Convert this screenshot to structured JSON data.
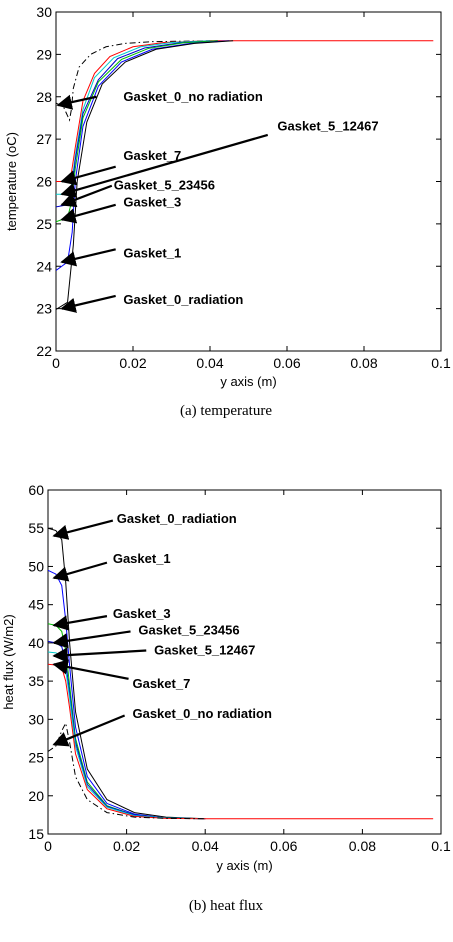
{
  "chart_data": [
    {
      "type": "line",
      "caption": "(a)  temperature",
      "xlabel": "y axis (m)",
      "ylabel": "temperature (oC)",
      "xlim": [
        0,
        0.1
      ],
      "ylim": [
        22,
        30
      ],
      "xticks": [
        0,
        0.02,
        0.04,
        0.06,
        0.08,
        0.1
      ],
      "xtick_labels": [
        "0",
        "0.02",
        "0.04",
        "0.06",
        "0.08",
        "0.1"
      ],
      "yticks": [
        22,
        23,
        24,
        25,
        26,
        27,
        28,
        29,
        30
      ],
      "ytick_labels": [
        "22",
        "23",
        "24",
        "25",
        "26",
        "27",
        "28",
        "29",
        "30"
      ],
      "series": [
        {
          "name": "Gasket_0_no radiation",
          "color": "#000000",
          "dash": "dashdot",
          "points": [
            [
              0,
              27.85
            ],
            [
              0.002,
              27.75
            ],
            [
              0.0035,
              27.45
            ],
            [
              0.004,
              27.7
            ],
            [
              0.0045,
              28.2
            ],
            [
              0.006,
              28.7
            ],
            [
              0.009,
              29.0
            ],
            [
              0.013,
              29.18
            ],
            [
              0.018,
              29.26
            ],
            [
              0.025,
              29.3
            ],
            [
              0.04,
              29.32
            ]
          ]
        },
        {
          "name": "Gasket_7",
          "color": "#ff0000",
          "dash": "solid",
          "points": [
            [
              0,
              26.0
            ],
            [
              0.003,
              26.0
            ],
            [
              0.004,
              26.2
            ],
            [
              0.005,
              26.8
            ],
            [
              0.007,
              27.9
            ],
            [
              0.01,
              28.55
            ],
            [
              0.014,
              28.95
            ],
            [
              0.02,
              29.18
            ],
            [
              0.028,
              29.28
            ],
            [
              0.04,
              29.32
            ],
            [
              0.098,
              29.32
            ]
          ]
        },
        {
          "name": "Gasket_5_12467",
          "color": "#00cccc",
          "dash": "solid",
          "points": [
            [
              0,
              25.7
            ],
            [
              0.003,
              25.7
            ],
            [
              0.004,
              25.9
            ],
            [
              0.005,
              26.6
            ],
            [
              0.007,
              27.7
            ],
            [
              0.01,
              28.45
            ],
            [
              0.015,
              28.92
            ],
            [
              0.022,
              29.18
            ],
            [
              0.03,
              29.28
            ],
            [
              0.04,
              29.32
            ]
          ]
        },
        {
          "name": "Gasket_5_23456",
          "color": "#0000cc",
          "dash": "solid",
          "points": [
            [
              0,
              25.4
            ],
            [
              0.003,
              25.45
            ],
            [
              0.004,
              25.7
            ],
            [
              0.005,
              26.5
            ],
            [
              0.007,
              27.6
            ],
            [
              0.011,
              28.4
            ],
            [
              0.016,
              28.9
            ],
            [
              0.023,
              29.15
            ],
            [
              0.032,
              29.27
            ],
            [
              0.042,
              29.32
            ]
          ]
        },
        {
          "name": "Gasket_3",
          "color": "#00bb00",
          "dash": "solid",
          "points": [
            [
              0,
              25.05
            ],
            [
              0.003,
              25.15
            ],
            [
              0.004,
              25.5
            ],
            [
              0.005,
              26.3
            ],
            [
              0.007,
              27.5
            ],
            [
              0.011,
              28.35
            ],
            [
              0.017,
              28.88
            ],
            [
              0.024,
              29.14
            ],
            [
              0.033,
              29.27
            ],
            [
              0.042,
              29.32
            ]
          ]
        },
        {
          "name": "Gasket_1",
          "color": "#0000ff",
          "dash": "solid",
          "points": [
            [
              0,
              23.9
            ],
            [
              0.003,
              24.1
            ],
            [
              0.0042,
              24.8
            ],
            [
              0.005,
              26.0
            ],
            [
              0.007,
              27.3
            ],
            [
              0.011,
              28.25
            ],
            [
              0.017,
              28.82
            ],
            [
              0.025,
              29.12
            ],
            [
              0.035,
              29.26
            ],
            [
              0.045,
              29.32
            ]
          ]
        },
        {
          "name": "Gasket_0_radiation",
          "color": "#000000",
          "dash": "solid",
          "points": [
            [
              0,
              22.98
            ],
            [
              0.003,
              23.15
            ],
            [
              0.0045,
              24.5
            ],
            [
              0.0055,
              26.0
            ],
            [
              0.008,
              27.4
            ],
            [
              0.012,
              28.3
            ],
            [
              0.018,
              28.82
            ],
            [
              0.026,
              29.12
            ],
            [
              0.036,
              29.26
            ],
            [
              0.046,
              29.32
            ]
          ]
        }
      ],
      "annotations": [
        {
          "text": "Gasket_0_no radiation",
          "x": 0.0175,
          "y": 28.0,
          "ax": 0.0105,
          "ay": 28.0,
          "tx": 0.0005,
          "ty": 27.8
        },
        {
          "text": "Gasket_7",
          "x": 0.0175,
          "y": 26.6,
          "ax": 0.0155,
          "ay": 26.35,
          "tx": 0.0015,
          "ty": 26.0
        },
        {
          "text": "Gasket_5_12467",
          "x": 0.0575,
          "y": 27.3,
          "ax": 0.055,
          "ay": 27.1,
          "tx": 0.0015,
          "ty": 25.7
        },
        {
          "text": "Gasket_5_23456",
          "x": 0.015,
          "y": 25.9,
          "ax": 0.0145,
          "ay": 25.9,
          "tx": 0.0015,
          "ty": 25.45
        },
        {
          "text": "Gasket_3",
          "x": 0.0175,
          "y": 25.5,
          "ax": 0.0155,
          "ay": 25.45,
          "tx": 0.0015,
          "ty": 25.1
        },
        {
          "text": "Gasket_1",
          "x": 0.0175,
          "y": 24.3,
          "ax": 0.0155,
          "ay": 24.4,
          "tx": 0.0015,
          "ty": 24.1
        },
        {
          "text": "Gasket_0_radiation",
          "x": 0.0175,
          "y": 23.2,
          "ax": 0.0155,
          "ay": 23.3,
          "tx": 0.0015,
          "ty": 23.0
        }
      ]
    },
    {
      "type": "line",
      "caption": "(b)  heat  flux",
      "xlabel": "y axis (m)",
      "ylabel": "heat flux (W/m2)",
      "xlim": [
        0,
        0.1
      ],
      "ylim": [
        15,
        60
      ],
      "xticks": [
        0,
        0.02,
        0.04,
        0.06,
        0.08,
        0.1
      ],
      "xtick_labels": [
        "0",
        "0.02",
        "0.04",
        "0.06",
        "0.08",
        "0.1"
      ],
      "yticks": [
        15,
        20,
        25,
        30,
        35,
        40,
        45,
        50,
        55,
        60
      ],
      "ytick_labels": [
        "15",
        "20",
        "25",
        "30",
        "35",
        "40",
        "45",
        "50",
        "55",
        "60"
      ],
      "series": [
        {
          "name": "Gasket_0_radiation",
          "color": "#000000",
          "dash": "solid",
          "points": [
            [
              0,
              55.0
            ],
            [
              0.002,
              54.7
            ],
            [
              0.0035,
              53.5
            ],
            [
              0.0045,
              48.0
            ],
            [
              0.0055,
              40.0
            ],
            [
              0.007,
              31.0
            ],
            [
              0.01,
              23.5
            ],
            [
              0.015,
              19.5
            ],
            [
              0.022,
              17.8
            ],
            [
              0.03,
              17.2
            ],
            [
              0.04,
              17.0
            ]
          ]
        },
        {
          "name": "Gasket_1",
          "color": "#0000ff",
          "dash": "solid",
          "points": [
            [
              0,
              49.5
            ],
            [
              0.002,
              49.0
            ],
            [
              0.0035,
              47.5
            ],
            [
              0.0045,
              43.0
            ],
            [
              0.0055,
              37.0
            ],
            [
              0.007,
              29.0
            ],
            [
              0.01,
              22.5
            ],
            [
              0.015,
              19.0
            ],
            [
              0.022,
              17.6
            ],
            [
              0.03,
              17.1
            ],
            [
              0.04,
              17.0
            ]
          ]
        },
        {
          "name": "Gasket_3",
          "color": "#00bb00",
          "dash": "solid",
          "points": [
            [
              0,
              42.5
            ],
            [
              0.002,
              42.3
            ],
            [
              0.0035,
              41.5
            ],
            [
              0.0045,
              39.0
            ],
            [
              0.0055,
              34.5
            ],
            [
              0.007,
              27.5
            ],
            [
              0.01,
              21.8
            ],
            [
              0.015,
              18.7
            ],
            [
              0.022,
              17.5
            ],
            [
              0.03,
              17.1
            ],
            [
              0.04,
              17.0
            ]
          ]
        },
        {
          "name": "Gasket_5_23456",
          "color": "#0000cc",
          "dash": "solid",
          "points": [
            [
              0,
              40.2
            ],
            [
              0.002,
              40.0
            ],
            [
              0.0035,
              39.5
            ],
            [
              0.0045,
              37.5
            ],
            [
              0.0055,
              33.5
            ],
            [
              0.007,
              27.0
            ],
            [
              0.01,
              21.5
            ],
            [
              0.015,
              18.6
            ],
            [
              0.022,
              17.5
            ],
            [
              0.03,
              17.1
            ],
            [
              0.04,
              17.0
            ]
          ]
        },
        {
          "name": "Gasket_5_12467",
          "color": "#00cccc",
          "dash": "solid",
          "points": [
            [
              0,
              38.8
            ],
            [
              0.002,
              38.7
            ],
            [
              0.0035,
              38.3
            ],
            [
              0.0045,
              36.5
            ],
            [
              0.0055,
              32.8
            ],
            [
              0.007,
              26.5
            ],
            [
              0.01,
              21.2
            ],
            [
              0.015,
              18.5
            ],
            [
              0.022,
              17.4
            ],
            [
              0.03,
              17.1
            ],
            [
              0.04,
              17.0
            ]
          ]
        },
        {
          "name": "Gasket_7",
          "color": "#ff0000",
          "dash": "solid",
          "points": [
            [
              0,
              37.2
            ],
            [
              0.002,
              37.1
            ],
            [
              0.0035,
              36.8
            ],
            [
              0.0045,
              35.0
            ],
            [
              0.0055,
              31.5
            ],
            [
              0.007,
              25.5
            ],
            [
              0.01,
              20.8
            ],
            [
              0.015,
              18.3
            ],
            [
              0.022,
              17.3
            ],
            [
              0.03,
              17.05
            ],
            [
              0.04,
              17.0
            ],
            [
              0.098,
              17.0
            ]
          ]
        },
        {
          "name": "Gasket_0_no radiation",
          "color": "#000000",
          "dash": "dashdot",
          "points": [
            [
              0,
              25.8
            ],
            [
              0.002,
              26.5
            ],
            [
              0.0035,
              28.5
            ],
            [
              0.0045,
              29.5
            ],
            [
              0.0055,
              27.0
            ],
            [
              0.007,
              22.5
            ],
            [
              0.01,
              19.5
            ],
            [
              0.015,
              17.8
            ],
            [
              0.022,
              17.2
            ],
            [
              0.03,
              17.05
            ],
            [
              0.04,
              17.0
            ]
          ]
        }
      ],
      "annotations": [
        {
          "text": "Gasket_0_radiation",
          "x": 0.0175,
          "y": 56.2,
          "ax": 0.0165,
          "ay": 56.0,
          "tx": 0.0015,
          "ty": 54.0
        },
        {
          "text": "Gasket_1",
          "x": 0.0165,
          "y": 51.0,
          "ax": 0.015,
          "ay": 50.5,
          "tx": 0.0015,
          "ty": 48.5
        },
        {
          "text": "Gasket_3",
          "x": 0.0165,
          "y": 43.8,
          "ax": 0.015,
          "ay": 43.5,
          "tx": 0.0015,
          "ty": 42.3
        },
        {
          "text": "Gasket_5_23456",
          "x": 0.023,
          "y": 41.6,
          "ax": 0.021,
          "ay": 41.5,
          "tx": 0.0015,
          "ty": 40.0
        },
        {
          "text": "Gasket_5_12467",
          "x": 0.027,
          "y": 39.0,
          "ax": 0.025,
          "ay": 39.0,
          "tx": 0.0015,
          "ty": 38.3
        },
        {
          "text": "Gasket_7",
          "x": 0.0215,
          "y": 34.6,
          "ax": 0.0205,
          "ay": 35.3,
          "tx": 0.0015,
          "ty": 37.2
        },
        {
          "text": "Gasket_0_no radiation",
          "x": 0.0215,
          "y": 30.7,
          "ax": 0.0195,
          "ay": 30.5,
          "tx": 0.0015,
          "ty": 26.7
        }
      ]
    }
  ]
}
